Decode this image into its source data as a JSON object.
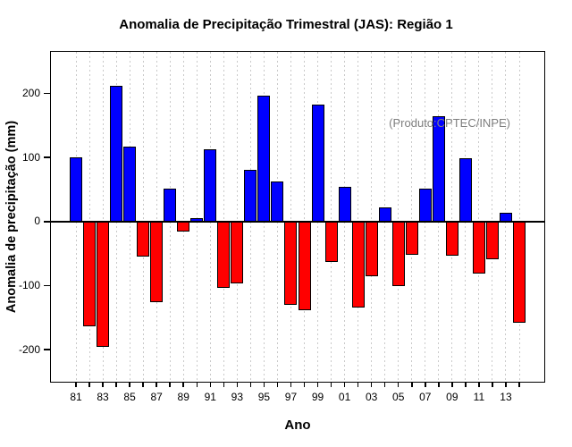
{
  "chart_data": {
    "type": "bar",
    "title": "Anomalia de Precipitação Trimestral (JAS): Região 1",
    "annotation": "(Produto:CPTEC/INPE)",
    "xlabel": "Ano",
    "ylabel": "Anomalia de precipitação (mm)",
    "ylim": [
      -250,
      265
    ],
    "yticks": [
      -200,
      -100,
      0,
      100,
      200
    ],
    "x_tick_labels": [
      "81",
      "83",
      "85",
      "87",
      "89",
      "91",
      "93",
      "95",
      "97",
      "99",
      "01",
      "03",
      "05",
      "07",
      "09",
      "11",
      "13"
    ],
    "x_tick_label_step": 2,
    "years": [
      1981,
      1982,
      1983,
      1984,
      1985,
      1986,
      1987,
      1988,
      1989,
      1990,
      1991,
      1992,
      1993,
      1994,
      1995,
      1996,
      1997,
      1998,
      1999,
      2000,
      2001,
      2002,
      2003,
      2004,
      2005,
      2006,
      2007,
      2008,
      2009,
      2010,
      2011,
      2012,
      2013,
      2014
    ],
    "values": [
      100,
      -163,
      -196,
      212,
      117,
      -54,
      -126,
      52,
      -15,
      5,
      113,
      -103,
      -97,
      81,
      196,
      63,
      -130,
      -138,
      182,
      -63,
      54,
      -134,
      -85,
      22,
      -100,
      -52,
      52,
      164,
      -53,
      99,
      -81,
      -59,
      14,
      -158
    ],
    "positive_color": "#0000ff",
    "negative_color": "#ff0000",
    "bar_border_color": "#000000",
    "gridline_color": "#c9c9c9",
    "annotation_color": "#7f7f7f",
    "grid": "vertical-dashed-per-year",
    "legend": "none"
  }
}
